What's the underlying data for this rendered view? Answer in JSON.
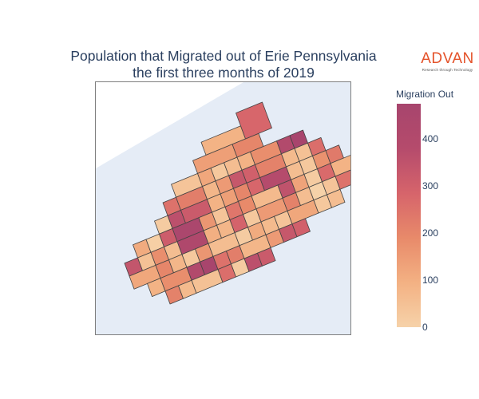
{
  "title": {
    "line1": "Population that Migrated out of Erie Pennsylvania",
    "line2": "the first three months of 2019"
  },
  "logo": {
    "word": "ADVAN",
    "tagline": "Research through Technology"
  },
  "colorbar": {
    "title": "Migration Out",
    "min": 0,
    "max": 475,
    "ticks": [
      0,
      100,
      200,
      300,
      400
    ],
    "colors": [
      "#f6d2a9",
      "#f3b183",
      "#e88a6a",
      "#d6646b",
      "#b54b6c",
      "#a7456d"
    ]
  },
  "map": {
    "water_color": "#e5ecf6",
    "tract_stroke": "#444444",
    "tract_values": [
      40,
      120,
      30,
      60,
      90,
      180,
      400,
      470,
      250,
      220,
      80,
      150,
      330,
      300,
      210,
      70,
      50,
      260,
      20,
      360,
      320,
      90,
      140,
      200,
      280,
      380,
      60,
      30,
      170,
      230,
      110,
      10,
      310,
      450,
      160,
      40,
      240,
      190,
      70,
      350,
      130,
      20,
      270,
      90,
      340,
      50,
      180,
      60,
      420,
      100,
      80,
      290,
      30,
      150,
      210,
      60,
      0,
      40,
      250,
      120,
      200,
      80,
      30,
      160,
      60,
      20,
      110,
      70
    ]
  }
}
